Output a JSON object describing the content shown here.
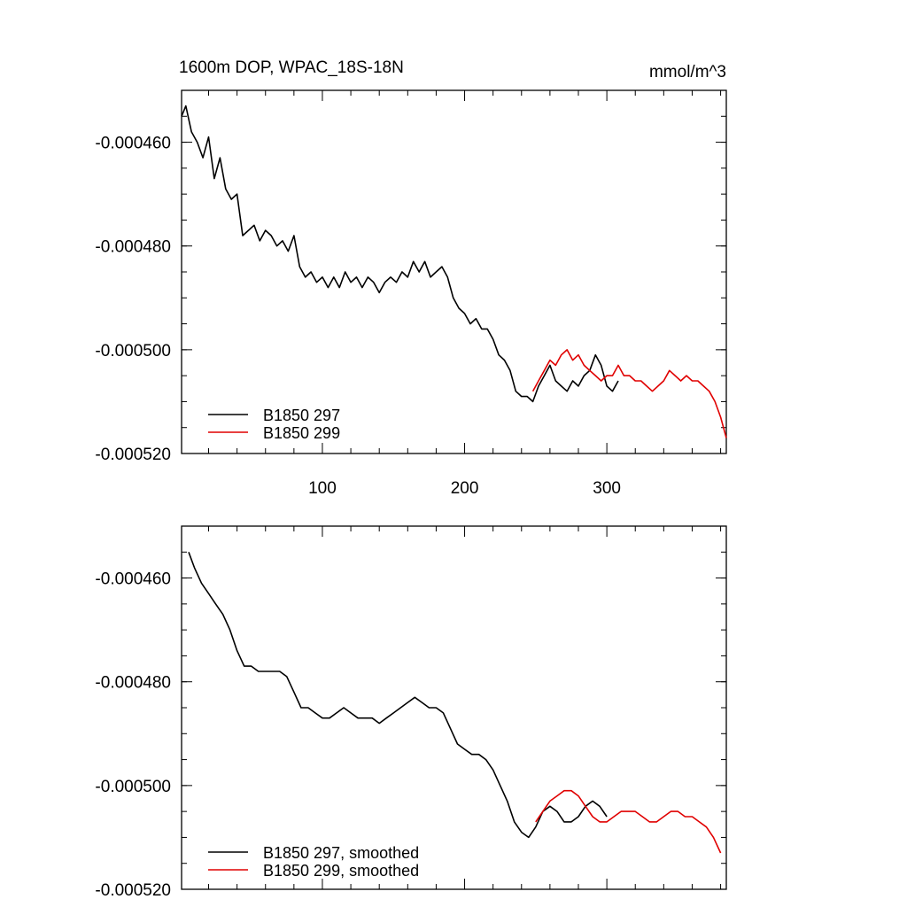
{
  "chart_data": [
    {
      "type": "line",
      "title": "1600m DOP, WPAC_18S-18N",
      "units": "mmol/m^3",
      "xlim": [
        1,
        384
      ],
      "ylim": [
        -0.00052,
        -0.00045
      ],
      "x_ticks": [
        100,
        200,
        300
      ],
      "x_tick_labels": [
        "100",
        "200",
        "300"
      ],
      "y_ticks": [
        -0.00046,
        -0.00048,
        -0.0005,
        -0.00052
      ],
      "y_tick_labels": [
        "-0.000460",
        "-0.000480",
        "-0.000500",
        "-0.000520"
      ],
      "legend_position": "bottom-left",
      "series": [
        {
          "name": "B1850 297",
          "color": "#000000",
          "x": [
            1,
            4,
            8,
            12,
            16,
            20,
            24,
            28,
            32,
            36,
            40,
            44,
            48,
            52,
            56,
            60,
            64,
            68,
            72,
            76,
            80,
            84,
            88,
            92,
            96,
            100,
            104,
            108,
            112,
            116,
            120,
            124,
            128,
            132,
            136,
            140,
            144,
            148,
            152,
            156,
            160,
            164,
            168,
            172,
            176,
            180,
            184,
            188,
            192,
            196,
            200,
            204,
            208,
            212,
            216,
            220,
            224,
            228,
            232,
            236,
            240,
            244,
            248,
            252,
            256,
            260,
            264,
            268,
            272,
            276,
            280,
            284,
            288,
            292,
            296,
            300,
            304,
            308
          ],
          "values": [
            -0.000455,
            -0.000453,
            -0.000458,
            -0.00046,
            -0.000463,
            -0.000459,
            -0.000467,
            -0.000463,
            -0.000469,
            -0.000471,
            -0.00047,
            -0.000478,
            -0.000477,
            -0.000476,
            -0.000479,
            -0.000477,
            -0.000478,
            -0.00048,
            -0.000479,
            -0.000481,
            -0.000478,
            -0.000484,
            -0.000486,
            -0.000485,
            -0.000487,
            -0.000486,
            -0.000488,
            -0.000486,
            -0.000488,
            -0.000485,
            -0.000487,
            -0.000486,
            -0.000488,
            -0.000486,
            -0.000487,
            -0.000489,
            -0.000487,
            -0.000486,
            -0.000487,
            -0.000485,
            -0.000486,
            -0.000483,
            -0.000485,
            -0.000483,
            -0.000486,
            -0.000485,
            -0.000484,
            -0.000486,
            -0.00049,
            -0.000492,
            -0.000493,
            -0.000495,
            -0.000494,
            -0.000496,
            -0.000496,
            -0.000498,
            -0.000501,
            -0.000502,
            -0.000504,
            -0.000508,
            -0.000509,
            -0.000509,
            -0.00051,
            -0.000507,
            -0.000505,
            -0.000503,
            -0.000506,
            -0.000507,
            -0.000508,
            -0.000506,
            -0.000507,
            -0.000505,
            -0.000504,
            -0.000501,
            -0.000503,
            -0.000507,
            -0.000508,
            -0.000506
          ]
        },
        {
          "name": "B1850 299",
          "color": "#e00000",
          "x": [
            248,
            252,
            256,
            260,
            264,
            268,
            272,
            276,
            280,
            284,
            288,
            292,
            296,
            300,
            304,
            308,
            312,
            316,
            320,
            324,
            328,
            332,
            336,
            340,
            344,
            348,
            352,
            356,
            360,
            364,
            368,
            372,
            376,
            380,
            384
          ],
          "values": [
            -0.000508,
            -0.000506,
            -0.000504,
            -0.000502,
            -0.000503,
            -0.000501,
            -0.0005,
            -0.000502,
            -0.000501,
            -0.000503,
            -0.000504,
            -0.000505,
            -0.000506,
            -0.000505,
            -0.000505,
            -0.000503,
            -0.000505,
            -0.000505,
            -0.000506,
            -0.000506,
            -0.000507,
            -0.000508,
            -0.000507,
            -0.000506,
            -0.000504,
            -0.000505,
            -0.000506,
            -0.000505,
            -0.000506,
            -0.000506,
            -0.000507,
            -0.000508,
            -0.00051,
            -0.000513,
            -0.000517
          ]
        }
      ]
    },
    {
      "type": "line",
      "title": "",
      "units": "",
      "xlim": [
        1,
        384
      ],
      "ylim": [
        -0.00052,
        -0.00045
      ],
      "x_ticks": [
        100,
        200,
        300
      ],
      "x_tick_labels": [],
      "y_ticks": [
        -0.00046,
        -0.00048,
        -0.0005,
        -0.00052
      ],
      "y_tick_labels": [
        "-0.000460",
        "-0.000480",
        "-0.000500",
        "-0.000520"
      ],
      "legend_position": "bottom-left",
      "series": [
        {
          "name": "B1850 297, smoothed",
          "color": "#000000",
          "x": [
            6,
            10,
            15,
            20,
            25,
            30,
            35,
            40,
            45,
            50,
            55,
            60,
            65,
            70,
            75,
            80,
            85,
            90,
            95,
            100,
            105,
            110,
            115,
            120,
            125,
            130,
            135,
            140,
            145,
            150,
            155,
            160,
            165,
            170,
            175,
            180,
            185,
            190,
            195,
            200,
            205,
            210,
            215,
            220,
            225,
            230,
            235,
            240,
            245,
            250,
            255,
            260,
            265,
            270,
            275,
            280,
            285,
            290,
            295,
            300
          ],
          "values": [
            -0.000455,
            -0.000458,
            -0.000461,
            -0.000463,
            -0.000465,
            -0.000467,
            -0.00047,
            -0.000474,
            -0.000477,
            -0.000477,
            -0.000478,
            -0.000478,
            -0.000478,
            -0.000478,
            -0.000479,
            -0.000482,
            -0.000485,
            -0.000485,
            -0.000486,
            -0.000487,
            -0.000487,
            -0.000486,
            -0.000485,
            -0.000486,
            -0.000487,
            -0.000487,
            -0.000487,
            -0.000488,
            -0.000487,
            -0.000486,
            -0.000485,
            -0.000484,
            -0.000483,
            -0.000484,
            -0.000485,
            -0.000485,
            -0.000486,
            -0.000489,
            -0.000492,
            -0.000493,
            -0.000494,
            -0.000494,
            -0.000495,
            -0.000497,
            -0.0005,
            -0.000503,
            -0.000507,
            -0.000509,
            -0.00051,
            -0.000508,
            -0.000505,
            -0.000504,
            -0.000505,
            -0.000507,
            -0.000507,
            -0.000506,
            -0.000504,
            -0.000503,
            -0.000504,
            -0.000506
          ]
        },
        {
          "name": "B1850 299, smoothed",
          "color": "#e00000",
          "x": [
            250,
            255,
            260,
            265,
            270,
            275,
            280,
            285,
            290,
            295,
            300,
            305,
            310,
            315,
            320,
            325,
            330,
            335,
            340,
            345,
            350,
            355,
            360,
            365,
            370,
            375,
            380
          ],
          "values": [
            -0.000507,
            -0.000505,
            -0.000503,
            -0.000502,
            -0.000501,
            -0.000501,
            -0.000502,
            -0.000504,
            -0.000506,
            -0.000507,
            -0.000507,
            -0.000506,
            -0.000505,
            -0.000505,
            -0.000505,
            -0.000506,
            -0.000507,
            -0.000507,
            -0.000506,
            -0.000505,
            -0.000505,
            -0.000506,
            -0.000506,
            -0.000507,
            -0.000508,
            -0.00051,
            -0.000513
          ]
        }
      ]
    }
  ]
}
